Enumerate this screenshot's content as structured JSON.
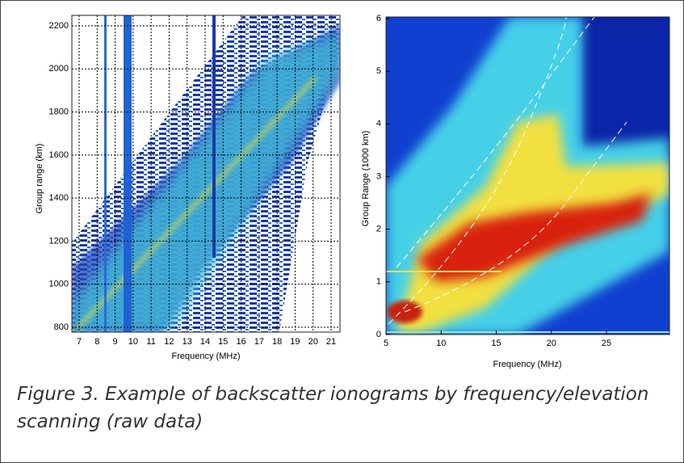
{
  "figure": {
    "left": {
      "y_label": "Group range (km)",
      "x_label": "Frequency (MHz)",
      "y_ticks": [
        800,
        1000,
        1200,
        1400,
        1600,
        1800,
        2000,
        2200
      ],
      "x_ticks": [
        7,
        8,
        9,
        10,
        11,
        12,
        13,
        14,
        15,
        16,
        17,
        18,
        19,
        20,
        21
      ]
    },
    "right": {
      "y_label": "Group Range (1000 km)",
      "x_label": "Frequency  (MHz)",
      "y_ticks": [
        0,
        1,
        2,
        3,
        4,
        5,
        6
      ],
      "x_ticks": [
        5,
        10,
        15,
        20,
        25
      ]
    }
  },
  "caption": "Figure 3. Example of backscatter ionograms by frequency/elevation scanning (raw data)"
}
